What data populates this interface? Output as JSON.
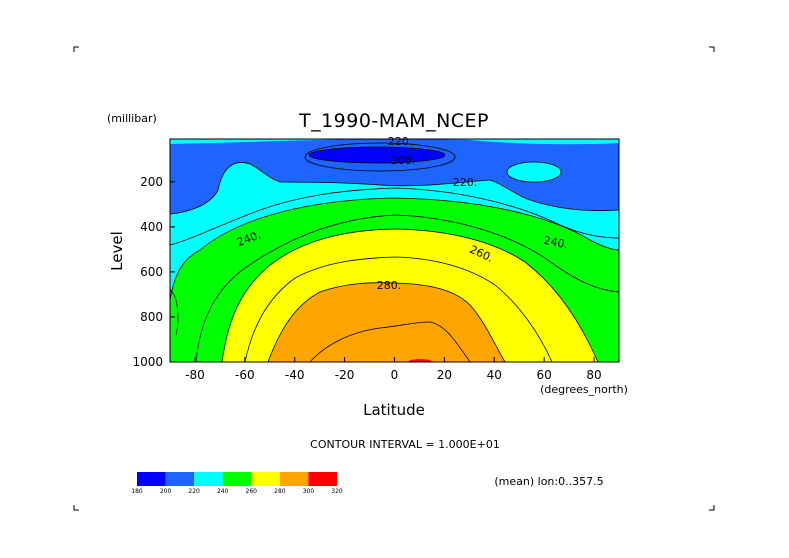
{
  "chart_data": {
    "type": "heatmap",
    "title": "T_1990-MAM_NCEP",
    "xlabel": "Latitude",
    "x_units": "(degrees_north)",
    "ylabel": "Level",
    "y_units": "(millibar)",
    "xlim": [
      -90,
      90
    ],
    "ylim": [
      1000,
      10
    ],
    "y_reversed": true,
    "x_ticks": [
      "-80",
      "-60",
      "-40",
      "-20",
      "0",
      "20",
      "40",
      "60",
      "80"
    ],
    "y_ticks": [
      "200",
      "400",
      "600",
      "800",
      "1000"
    ],
    "contour_interval_text": "CONTOUR INTERVAL = 1.000E+01",
    "contour_labels": [
      "220.",
      "200.",
      "220.",
      "240.",
      "240.",
      "260.",
      "280."
    ],
    "subset_note": "(mean) lon:0..357.5",
    "colorbar": {
      "levels": [
        "180",
        "200",
        "220",
        "240",
        "260",
        "280",
        "300",
        "320"
      ],
      "colors": [
        "#0000ff",
        "#1e64ff",
        "#00ffff",
        "#00ff00",
        "#ffff00",
        "#ffa500",
        "#ff0000"
      ]
    }
  }
}
